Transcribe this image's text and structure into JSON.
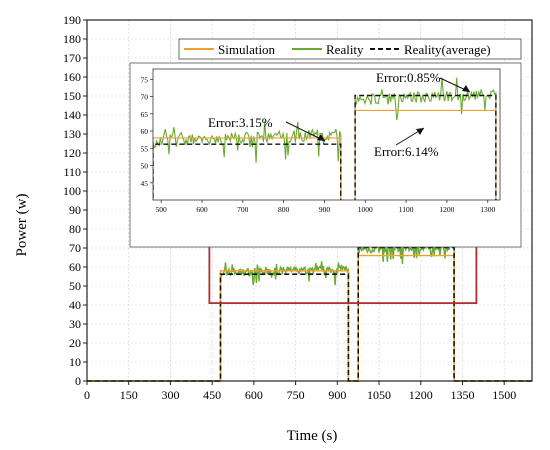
{
  "chart_data": {
    "type": "line",
    "xlabel": "Time (s)",
    "ylabel": "Power (w)",
    "xlim": [
      0,
      1600
    ],
    "ylim": [
      0,
      190
    ],
    "xticks": [
      0,
      150,
      300,
      450,
      600,
      750,
      900,
      1050,
      1200,
      1350,
      1500
    ],
    "yticks": [
      0,
      10,
      20,
      30,
      40,
      50,
      60,
      70,
      80,
      90,
      100,
      110,
      120,
      130,
      140,
      150,
      160,
      170,
      180,
      190
    ],
    "grid": true,
    "legend_position": "top-right",
    "series": [
      {
        "name": "Simulation",
        "color": "#f0a030",
        "style": "solid",
        "x": [
          0,
          480,
          480,
          940,
          940,
          975,
          975,
          1320,
          1320,
          1600
        ],
        "y": [
          0,
          0,
          58,
          58,
          0,
          0,
          66,
          66,
          0,
          0
        ]
      },
      {
        "name": "Reality",
        "color": "#6aaa32",
        "style": "solid",
        "noisy": true,
        "x": [
          0,
          480,
          480,
          940,
          940,
          975,
          975,
          1320,
          1320,
          1600
        ],
        "y": [
          0,
          0,
          57,
          59,
          0,
          0,
          69,
          71,
          0,
          0
        ]
      },
      {
        "name": "Reality(average)",
        "color": "#111111",
        "style": "dashed",
        "x": [
          0,
          480,
          480,
          940,
          940,
          975,
          975,
          1320,
          1320,
          1600
        ],
        "y": [
          0,
          0,
          56.2,
          56.2,
          0,
          0,
          70.3,
          70.3,
          0,
          0
        ]
      }
    ],
    "highlight_box": {
      "x": [
        440,
        1400
      ],
      "y": [
        41,
        79
      ],
      "color": "#b03030"
    },
    "inset": {
      "xlim": [
        480,
        1330
      ],
      "ylim": [
        40,
        78
      ],
      "xticks": [
        500,
        600,
        700,
        800,
        900,
        1000,
        1100,
        1200,
        1300
      ],
      "yticks": [
        45,
        50,
        55,
        60,
        65,
        70,
        75
      ],
      "annotations": [
        {
          "text": "Error:3.15%",
          "at": [
            920,
            57
          ]
        },
        {
          "text": "Error:0.85%",
          "at": [
            1080,
            71
          ]
        },
        {
          "text": "Error:6.14%",
          "at": [
            1150,
            61
          ]
        }
      ]
    }
  }
}
